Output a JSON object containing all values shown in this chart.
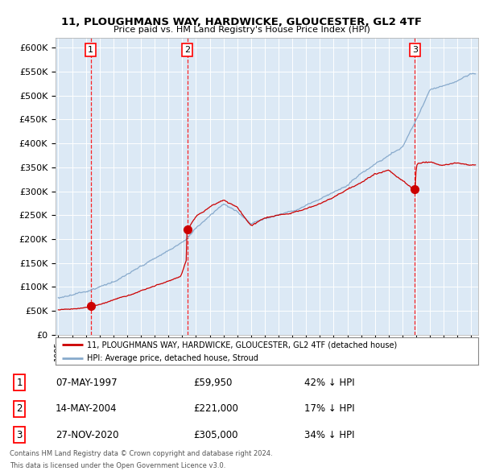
{
  "title": "11, PLOUGHMANS WAY, HARDWICKE, GLOUCESTER, GL2 4TF",
  "subtitle": "Price paid vs. HM Land Registry's House Price Index (HPI)",
  "background_color": "#dce9f5",
  "plot_bg_color": "#dce9f5",
  "sale_color": "#cc0000",
  "hpi_color": "#88aacc",
  "sale_dates_year": [
    1997.35,
    2004.37,
    2020.9
  ],
  "sale_prices": [
    59950,
    221000,
    305000
  ],
  "sale_labels": [
    "1",
    "2",
    "3"
  ],
  "legend_sale": "11, PLOUGHMANS WAY, HARDWICKE, GLOUCESTER, GL2 4TF (detached house)",
  "legend_hpi": "HPI: Average price, detached house, Stroud",
  "table_rows": [
    {
      "num": "1",
      "date": "07-MAY-1997",
      "price": "£59,950",
      "pct": "42% ↓ HPI"
    },
    {
      "num": "2",
      "date": "14-MAY-2004",
      "price": "£221,000",
      "pct": "17% ↓ HPI"
    },
    {
      "num": "3",
      "date": "27-NOV-2020",
      "price": "£305,000",
      "pct": "34% ↓ HPI"
    }
  ],
  "footer1": "Contains HM Land Registry data © Crown copyright and database right 2024.",
  "footer2": "This data is licensed under the Open Government Licence v3.0.",
  "xmin": 1994.8,
  "xmax": 2025.5,
  "ymin": 0,
  "ymax": 620000,
  "hpi_key_years": [
    1995,
    1997,
    1999,
    2001,
    2003,
    2004.37,
    2005,
    2007,
    2008,
    2009,
    2010,
    2012,
    2014,
    2016,
    2017,
    2018,
    2019,
    2020,
    2021,
    2022,
    2023,
    2024,
    2025
  ],
  "hpi_key_values": [
    75000,
    90000,
    110000,
    140000,
    170000,
    200000,
    220000,
    270000,
    255000,
    230000,
    240000,
    255000,
    280000,
    310000,
    335000,
    355000,
    375000,
    390000,
    450000,
    510000,
    520000,
    530000,
    545000
  ],
  "red_key_years": [
    1995,
    1997.35,
    2003.9,
    2004.37,
    2005,
    2006,
    2007,
    2008,
    2009,
    2010,
    2012,
    2014,
    2016,
    2017,
    2018,
    2019,
    2020.9,
    2021,
    2022,
    2023,
    2024,
    2025
  ],
  "red_key_values": [
    52000,
    59950,
    160000,
    221000,
    250000,
    270000,
    285000,
    270000,
    230000,
    245000,
    255000,
    275000,
    305000,
    320000,
    340000,
    350000,
    305000,
    360000,
    365000,
    355000,
    360000,
    355000
  ]
}
